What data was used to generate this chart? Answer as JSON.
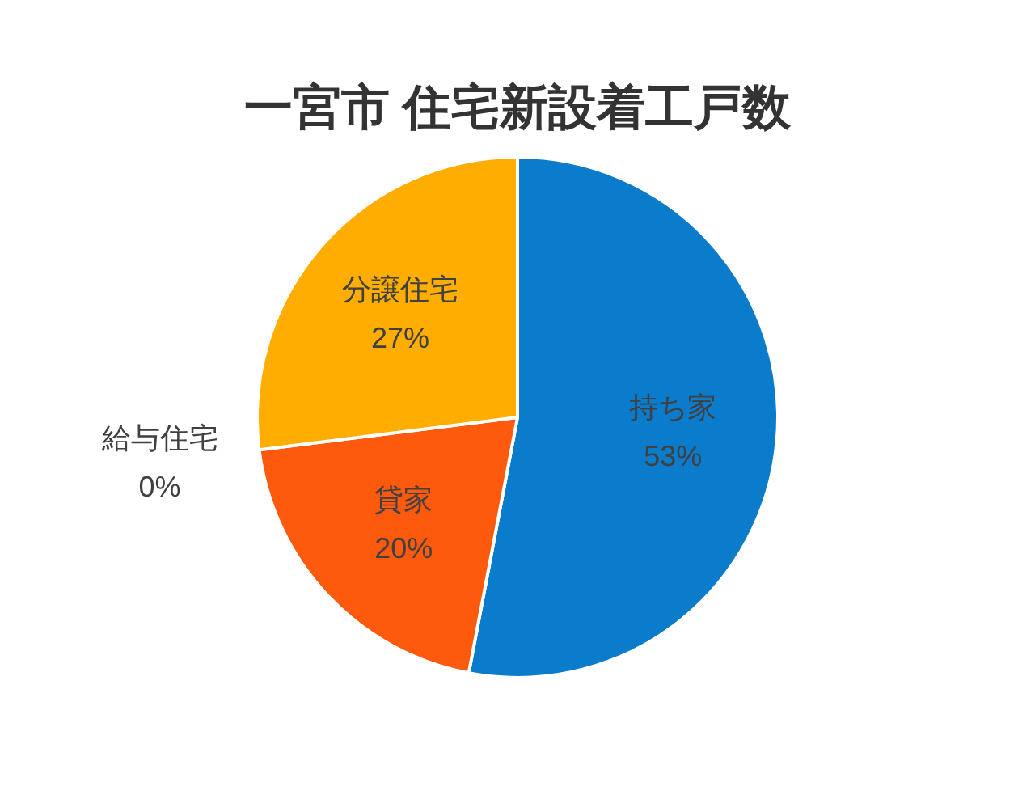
{
  "chart_data": {
    "type": "pie",
    "title": "一宮市 住宅新設着工戸数",
    "categories": [
      "持ち家",
      "貸家",
      "給与住宅",
      "分譲住宅"
    ],
    "values": [
      53,
      20,
      0,
      27
    ],
    "colors": [
      "#0b7bcb",
      "#fe5a0e",
      "#a5a5a5",
      "#ffad00"
    ],
    "value_labels": [
      "53%",
      "20%",
      "0%",
      "27%"
    ],
    "legend": false
  }
}
